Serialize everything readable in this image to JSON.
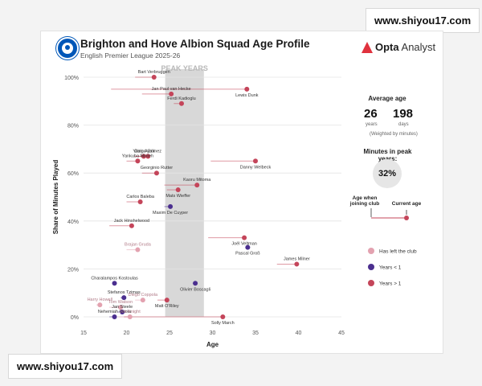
{
  "watermark": {
    "text": "www.shiyou17.com"
  },
  "header": {
    "title": "Brighton and Hove Albion Squad Age Profile",
    "subtitle": "English Premier League 2025-26",
    "brand_bold": "Opta",
    "brand_light": " Analyst"
  },
  "sidebar": {
    "avg_label": "Average age",
    "avg_years": "26",
    "avg_years_unit": "years",
    "avg_days": "198",
    "avg_days_unit": "days",
    "avg_note": "(Weighted by minutes)",
    "peak_label": "Minutes in peak years:",
    "peak_value": "32%",
    "joined_label": "Age when joining club",
    "current_label": "Current age",
    "legend_left": "Has left the club",
    "legend_u1": "Years < 1",
    "legend_o1": "Years > 1"
  },
  "colors": {
    "over1": "#c4455a",
    "under1": "#4b2f8f",
    "left": "#e3a2b0",
    "band": "#d8d8d8"
  },
  "chart_data": {
    "type": "scatter",
    "title": "Brighton and Hove Albion Squad Age Profile",
    "xlabel": "Age",
    "ylabel": "Share of Minutes Played",
    "xlim": [
      15,
      45
    ],
    "ylim": [
      0,
      100
    ],
    "xticks": [
      15,
      20,
      25,
      30,
      35,
      40,
      45
    ],
    "yticks": [
      0,
      20,
      40,
      60,
      80,
      100
    ],
    "ytick_labels": [
      "0%",
      "20%",
      "40%",
      "60%",
      "80%",
      "100%"
    ],
    "peak_band": {
      "label": "PEAK YEARS",
      "from": 24.5,
      "to": 29
    },
    "players": [
      {
        "name": "Bart Verbruggen",
        "age": 23.2,
        "joined": 21.0,
        "share": 100,
        "status": "over1"
      },
      {
        "name": "Jan Paul van Hecke",
        "age": 25.2,
        "joined": 21.8,
        "share": 93,
        "status": "over1"
      },
      {
        "name": "Lewis Dunk",
        "age": 34.0,
        "joined": 18.2,
        "share": 95,
        "status": "over1"
      },
      {
        "name": "Ferdi Kadioglu",
        "age": 26.4,
        "joined": 25.5,
        "share": 89,
        "status": "over1"
      },
      {
        "name": "Yasin Ayari",
        "age": 22.0,
        "joined": 21.0,
        "share": 67,
        "status": "over1"
      },
      {
        "name": "Diego Gómez",
        "age": 22.5,
        "joined": 21.0,
        "share": 67,
        "status": "over1"
      },
      {
        "name": "Yankuba Minteh",
        "age": 21.3,
        "joined": 20.0,
        "share": 65,
        "status": "over1"
      },
      {
        "name": "Danny Welbeck",
        "age": 35.0,
        "joined": 29.8,
        "share": 65,
        "status": "over1"
      },
      {
        "name": "Georginio Rutter",
        "age": 23.5,
        "joined": 21.8,
        "share": 60,
        "status": "over1"
      },
      {
        "name": "Kaoru Mitoma",
        "age": 28.2,
        "joined": 24.4,
        "share": 55,
        "status": "over1"
      },
      {
        "name": "Mats Wieffer",
        "age": 26.0,
        "joined": 24.7,
        "share": 53,
        "status": "over1"
      },
      {
        "name": "Carlos Baleba",
        "age": 21.6,
        "joined": 20.0,
        "share": 48,
        "status": "over1"
      },
      {
        "name": "Maxim De Cuyper",
        "age": 25.1,
        "joined": 24.4,
        "share": 46,
        "status": "under1"
      },
      {
        "name": "Jack Hinshelwood",
        "age": 20.6,
        "joined": 18.0,
        "share": 38,
        "status": "over1"
      },
      {
        "name": "Joël Veltman",
        "age": 33.7,
        "joined": 29.5,
        "share": 33,
        "status": "over1"
      },
      {
        "name": "Pascal Groß",
        "age": 34.1,
        "joined": 33.9,
        "share": 29,
        "status": "under1"
      },
      {
        "name": "Brajan Gruda",
        "age": 21.3,
        "joined": 20.0,
        "share": 28,
        "status": "left"
      },
      {
        "name": "James Milner",
        "age": 39.8,
        "joined": 37.5,
        "share": 22,
        "status": "over1"
      },
      {
        "name": "Charalampos Kostoulas",
        "age": 18.6,
        "joined": 18.4,
        "share": 14,
        "status": "under1"
      },
      {
        "name": "Olivier Boscagli",
        "age": 28.0,
        "joined": 27.7,
        "share": 14,
        "status": "under1"
      },
      {
        "name": "Stefanos Tzimas",
        "age": 19.7,
        "joined": 19.3,
        "share": 8,
        "status": "under1"
      },
      {
        "name": "Diego Coppola",
        "age": 21.9,
        "joined": 21.0,
        "share": 7,
        "status": "left"
      },
      {
        "name": "Matt O'Riley",
        "age": 24.7,
        "joined": 23.6,
        "share": 7,
        "status": "over1"
      },
      {
        "name": "Harry Howell",
        "age": 16.9,
        "joined": 16.5,
        "share": 5,
        "status": "left"
      },
      {
        "name": "Tom Watson",
        "age": 19.3,
        "joined": 18.0,
        "share": 4,
        "status": "left"
      },
      {
        "name": "Jan Steele",
        "age": 19.5,
        "joined": 19.0,
        "share": 2,
        "status": "under1"
      },
      {
        "name": "Nehemiah Oriola",
        "age": 18.6,
        "joined": 18.0,
        "share": 0,
        "status": "under1"
      },
      {
        "name": "Joe Knight",
        "age": 20.4,
        "joined": 19.0,
        "share": 0,
        "status": "left"
      },
      {
        "name": "Solly March",
        "age": 31.2,
        "joined": 19.7,
        "share": 0,
        "status": "over1"
      }
    ]
  }
}
